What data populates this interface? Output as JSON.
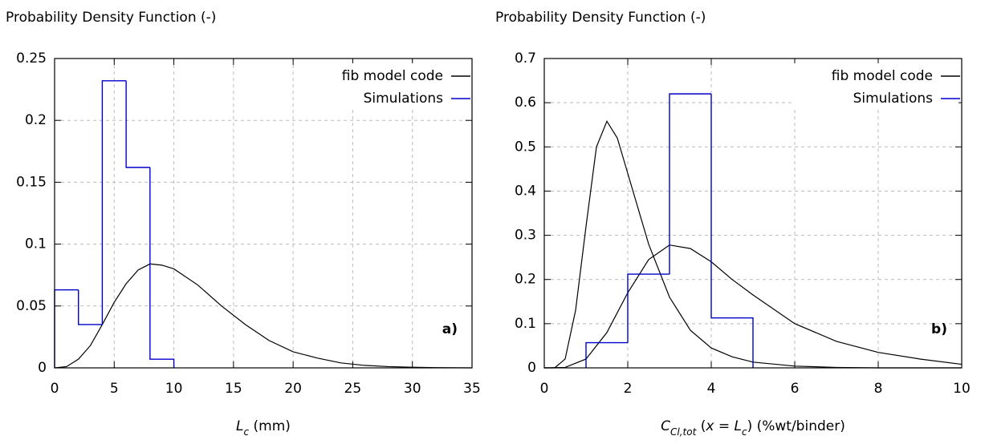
{
  "chart_data": [
    {
      "type": "histogram",
      "ylabel": "Probability Density Function (-)",
      "xlabel": [
        {
          "text": "L",
          "italic": true
        },
        {
          "text": "c",
          "italic": true,
          "sub": true
        },
        {
          "text": " (mm)"
        }
      ],
      "annotation": "a)",
      "xlim": [
        0,
        35
      ],
      "xticks": [
        0,
        5,
        10,
        15,
        20,
        25,
        30,
        35
      ],
      "ylim": [
        0,
        0.25
      ],
      "yticks": [
        0,
        0.05,
        0.1,
        0.15,
        0.2,
        0.25
      ],
      "grid": true,
      "legend": "upper right",
      "series": [
        {
          "name": "fib model code",
          "color": "#000000",
          "type": "line",
          "curves": [
            {
              "x": [
                0,
                1,
                2,
                3,
                4,
                5,
                6,
                7,
                8,
                9,
                10,
                12,
                14,
                16,
                18,
                20,
                22,
                24,
                26,
                28,
                30,
                32,
                35
              ],
              "values": [
                0,
                0.001,
                0.007,
                0.018,
                0.035,
                0.053,
                0.068,
                0.079,
                0.084,
                0.083,
                0.08,
                0.067,
                0.05,
                0.035,
                0.022,
                0.013,
                0.008,
                0.004,
                0.002,
                0.001,
                0.0005,
                0.0002,
                0
              ]
            }
          ]
        },
        {
          "name": "Simulations",
          "color": "#0000cc",
          "type": "histogram",
          "bins": [
            0,
            2,
            4,
            6,
            8,
            10
          ],
          "values": [
            0.063,
            0.035,
            0.232,
            0.162,
            0.007
          ]
        }
      ]
    },
    {
      "type": "histogram",
      "ylabel": "Probability Density Function (-)",
      "xlabel": [
        {
          "text": "C",
          "italic": true
        },
        {
          "text": "Cl,tot",
          "italic": true,
          "sub": true
        },
        {
          "text": " ("
        },
        {
          "text": "x = L",
          "italic": true
        },
        {
          "text": "c",
          "italic": true,
          "sub": true
        },
        {
          "text": ") (%wt/binder)"
        }
      ],
      "annotation": "b)",
      "xlim": [
        0,
        10
      ],
      "xticks": [
        0,
        2,
        4,
        6,
        8,
        10
      ],
      "ylim": [
        0,
        0.7
      ],
      "yticks": [
        0,
        0.1,
        0.2,
        0.3,
        0.4,
        0.5,
        0.6,
        0.7
      ],
      "grid": true,
      "legend": "upper right",
      "series": [
        {
          "name": "fib model code",
          "color": "#000000",
          "type": "line",
          "curves": [
            {
              "x": [
                0,
                0.25,
                0.5,
                0.75,
                1,
                1.25,
                1.5,
                1.75,
                2,
                2.5,
                3,
                3.5,
                4,
                4.5,
                5,
                6,
                7,
                8,
                10
              ],
              "values": [
                0,
                0,
                0.02,
                0.13,
                0.32,
                0.5,
                0.558,
                0.52,
                0.44,
                0.28,
                0.16,
                0.085,
                0.045,
                0.025,
                0.013,
                0.004,
                0.001,
                0,
                0
              ]
            },
            {
              "x": [
                0,
                0.5,
                1,
                1.5,
                2,
                2.5,
                3,
                3.5,
                4,
                4.5,
                5,
                6,
                7,
                8,
                9,
                10
              ],
              "values": [
                0,
                0.001,
                0.02,
                0.08,
                0.17,
                0.245,
                0.278,
                0.27,
                0.24,
                0.2,
                0.165,
                0.1,
                0.06,
                0.035,
                0.02,
                0.008
              ]
            }
          ]
        },
        {
          "name": "Simulations",
          "color": "#0000cc",
          "type": "histogram",
          "bins": [
            1,
            2,
            3,
            4,
            5
          ],
          "values": [
            0.057,
            0.212,
            0.62,
            0.113
          ]
        }
      ]
    }
  ]
}
